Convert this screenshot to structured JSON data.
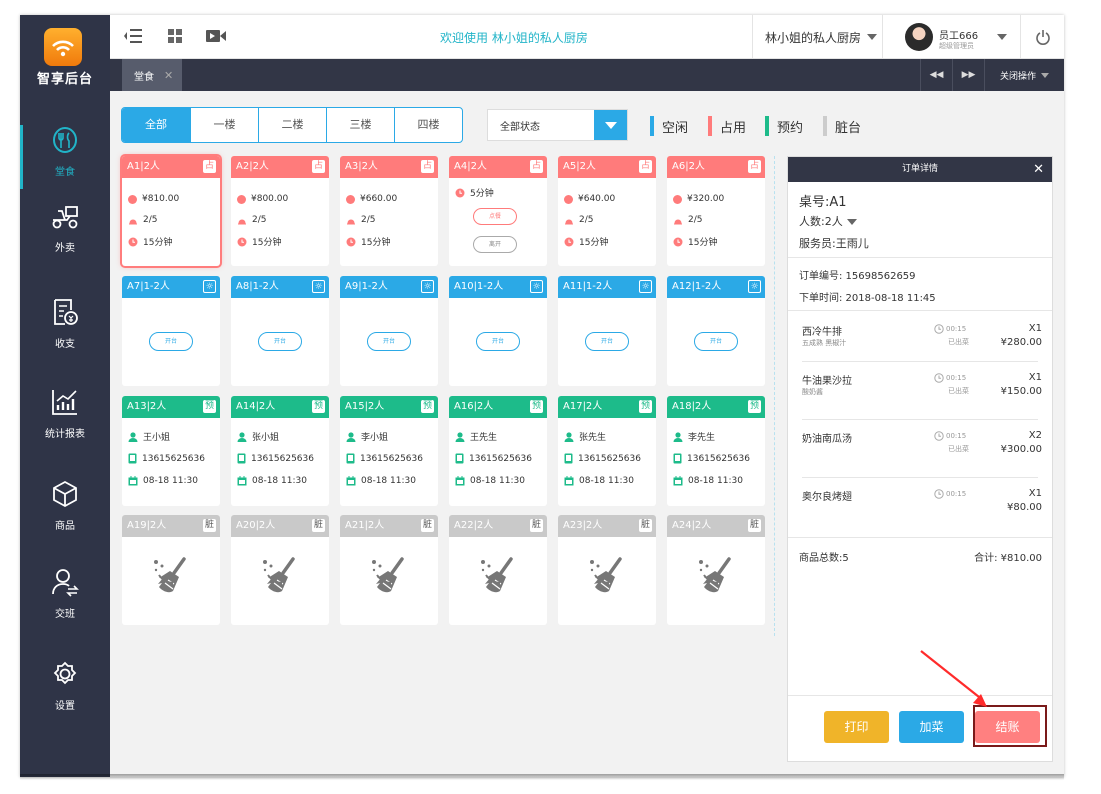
{
  "brand": {
    "name": "智享后台"
  },
  "sidebar": {
    "items": [
      {
        "label": "堂食",
        "icon": "dine-in-icon",
        "active": true
      },
      {
        "label": "外卖",
        "icon": "delivery-scooter-icon"
      },
      {
        "label": "收支",
        "icon": "finance-icon"
      },
      {
        "label": "统计报表",
        "icon": "chart-icon"
      },
      {
        "label": "商品",
        "icon": "product-box-icon"
      },
      {
        "label": "交班",
        "icon": "shift-handover-icon"
      },
      {
        "label": "设置",
        "icon": "settings-gear-icon"
      }
    ]
  },
  "topbar": {
    "welcome": "欢迎使用  林小姐的私人厨房",
    "store": "林小姐的私人厨房",
    "user_name": "员工666",
    "user_role": "超级管理员"
  },
  "tabs": {
    "items": [
      {
        "label": "堂食"
      }
    ],
    "close_ops": "关闭操作"
  },
  "floors": {
    "items": [
      "全部",
      "一楼",
      "二楼",
      "三楼",
      "四楼"
    ],
    "active": 0
  },
  "status_filter": {
    "value": "全部状态"
  },
  "legend": [
    {
      "label": "空闲",
      "color": "#2ba9e6"
    },
    {
      "label": "占用",
      "color": "#ff7b7b"
    },
    {
      "label": "预约",
      "color": "#1dbb8a"
    },
    {
      "label": "脏台",
      "color": "#cccccc"
    }
  ],
  "tables": {
    "occupied": [
      {
        "name": "A1|2人",
        "badge": "占",
        "amount": "¥810.00",
        "guests": "2/5",
        "time": "15分钟"
      },
      {
        "name": "A2|2人",
        "badge": "占",
        "amount": "¥800.00",
        "guests": "2/5",
        "time": "15分钟"
      },
      {
        "name": "A3|2人",
        "badge": "占",
        "amount": "¥660.00",
        "guests": "2/5",
        "time": "15分钟"
      },
      {
        "name": "A4|2人",
        "badge": "占",
        "time": "5分钟",
        "order_btn": "点餐",
        "leave_btn": "离开"
      },
      {
        "name": "A5|2人",
        "badge": "占",
        "amount": "¥640.00",
        "guests": "2/5",
        "time": "15分钟"
      },
      {
        "name": "A6|2人",
        "badge": "占",
        "amount": "¥320.00",
        "guests": "2/5",
        "time": "15分钟"
      }
    ],
    "free": [
      {
        "name": "A7|1-2人",
        "open": "开台"
      },
      {
        "name": "A8|1-2人",
        "open": "开台"
      },
      {
        "name": "A9|1-2人",
        "open": "开台"
      },
      {
        "name": "A10|1-2人",
        "open": "开台"
      },
      {
        "name": "A11|1-2人",
        "open": "开台"
      },
      {
        "name": "A12|1-2人",
        "open": "开台"
      }
    ],
    "reserved": [
      {
        "name": "A13|2人",
        "badge": "预",
        "person": "王小姐",
        "phone": "13615625636",
        "date": "08-18 11:30"
      },
      {
        "name": "A14|2人",
        "badge": "预",
        "person": "张小姐",
        "phone": "13615625636",
        "date": "08-18 11:30"
      },
      {
        "name": "A15|2人",
        "badge": "预",
        "person": "李小姐",
        "phone": "13615625636",
        "date": "08-18 11:30"
      },
      {
        "name": "A16|2人",
        "badge": "预",
        "person": "王先生",
        "phone": "13615625636",
        "date": "08-18 11:30"
      },
      {
        "name": "A17|2人",
        "badge": "预",
        "person": "张先生",
        "phone": "13615625636",
        "date": "08-18 11:30"
      },
      {
        "name": "A18|2人",
        "badge": "预",
        "person": "李先生",
        "phone": "13615625636",
        "date": "08-18 11:30"
      }
    ],
    "dirty": [
      {
        "name": "A19|2人",
        "badge": "脏"
      },
      {
        "name": "A20|2人",
        "badge": "脏"
      },
      {
        "name": "A21|2人",
        "badge": "脏"
      },
      {
        "name": "A22|2人",
        "badge": "脏"
      },
      {
        "name": "A23|2人",
        "badge": "脏"
      },
      {
        "name": "A24|2人",
        "badge": "脏"
      }
    ]
  },
  "order": {
    "title": "订单详情",
    "table": "桌号:A1",
    "guests": "人数:2人",
    "waiter": "服务员:王雨儿",
    "order_no": "订单编号: 15698562659",
    "order_time": "下单时间: 2018-08-18 11:45",
    "items": [
      {
        "name": "西冷牛排",
        "note": "五成熟 黑椒汁",
        "time": "00:15",
        "state": "已出菜",
        "qty": "X1",
        "price": "¥280.00"
      },
      {
        "name": "牛油果沙拉",
        "note": "酸奶酱",
        "time": "00:15",
        "state": "已出菜",
        "qty": "X1",
        "price": "¥150.00"
      },
      {
        "name": "奶油南瓜汤",
        "note": "",
        "time": "00:15",
        "state": "已出菜",
        "qty": "X2",
        "price": "¥300.00"
      },
      {
        "name": "奥尔良烤翅",
        "note": "",
        "time": "00:15",
        "state": "",
        "qty": "X1",
        "price": "¥80.00"
      }
    ],
    "total_count": "商品总数:5",
    "total_amount": "合计: ¥810.00",
    "print_btn": "打印",
    "add_btn": "加菜",
    "checkout_btn": "结账"
  },
  "colors": {
    "primary": "#2ba9e6",
    "occupied": "#ff7b7b",
    "reserved": "#1dbb8a",
    "dirty": "#cccccc",
    "sidebar": "#2f3447",
    "print": "#f0b429",
    "add": "#2ba9e6",
    "checkout": "#ff8080"
  }
}
